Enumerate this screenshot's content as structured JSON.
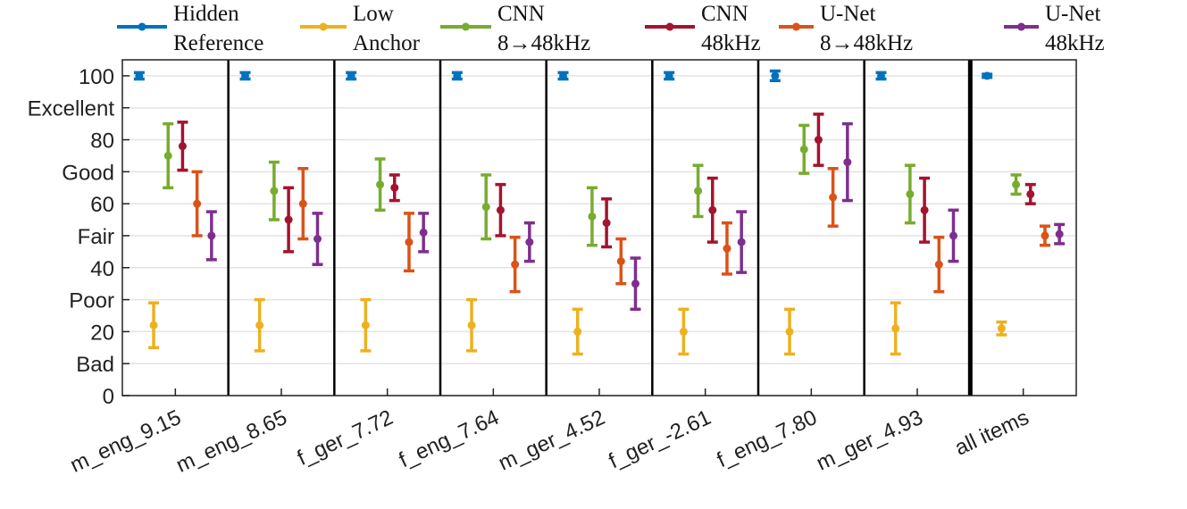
{
  "chart_data": {
    "type": "errorbar",
    "categories": [
      "m_eng_9.15",
      "m_eng_8.65",
      "f_ger_7.72",
      "f_eng_7.64",
      "m_ger_4.52",
      "f_ger_-2.61",
      "f_eng_7.80",
      "m_ger_4.93",
      "all items"
    ],
    "series": [
      {
        "name": "Hidden Reference",
        "color": "#0072BD",
        "values": [
          100,
          100,
          100,
          100,
          100,
          100,
          100,
          100,
          100
        ],
        "errors": [
          1,
          1,
          1,
          1,
          1,
          1,
          1.5,
          1,
          0.5
        ]
      },
      {
        "name": "Low Anchor",
        "color": "#EDB120",
        "values": [
          22,
          22,
          22,
          22,
          20,
          20,
          20,
          21,
          21
        ],
        "errors": [
          7,
          8,
          8,
          8,
          7,
          7,
          7,
          8,
          2
        ]
      },
      {
        "name": "CNN 8→48kHz",
        "color": "#77AC30",
        "values": [
          75,
          64,
          66,
          59,
          56,
          64,
          77,
          63,
          66
        ],
        "errors": [
          10,
          9,
          8,
          10,
          9,
          8,
          7.5,
          9,
          3
        ]
      },
      {
        "name": "CNN 48kHz",
        "color": "#A2142F",
        "values": [
          78,
          55,
          65,
          58,
          54,
          58,
          80,
          58,
          63
        ],
        "errors": [
          7.5,
          10,
          4,
          8,
          7.5,
          10,
          8,
          10,
          3
        ]
      },
      {
        "name": "U-Net 8→48kHz",
        "color": "#D95319",
        "values": [
          60,
          60,
          48,
          41,
          42,
          46,
          62,
          41,
          50
        ],
        "errors": [
          10,
          11,
          9,
          8.5,
          7,
          8,
          9,
          8.5,
          3
        ]
      },
      {
        "name": "U-Net 48kHz",
        "color": "#7E2F8E",
        "values": [
          50,
          49,
          51,
          48,
          35,
          48,
          73,
          50,
          50.5
        ],
        "errors": [
          7.5,
          8,
          6,
          6,
          8,
          9.5,
          12,
          8,
          3
        ]
      }
    ],
    "ylim": [
      0,
      105
    ],
    "yticks": [
      0,
      {
        "value": 10,
        "label": "Bad"
      },
      20,
      {
        "value": 30,
        "label": "Poor"
      },
      40,
      {
        "value": 50,
        "label": "Fair"
      },
      60,
      {
        "value": 70,
        "label": "Good"
      },
      80,
      {
        "value": 90,
        "label": "Excellent"
      },
      100
    ],
    "grid": true
  }
}
